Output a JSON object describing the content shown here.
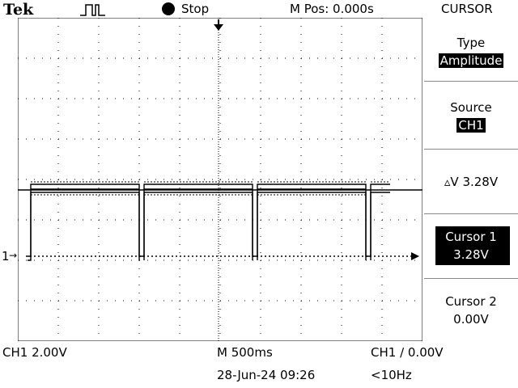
{
  "header": {
    "brand": "Tek",
    "trigger_icon": "pulse-trigger-icon",
    "run_state": "Stop",
    "m_pos": "M Pos: 0.000s",
    "menu_title": "CURSOR"
  },
  "menu": {
    "type_label": "Type",
    "type_value": "Amplitude",
    "source_label": "Source",
    "source_value": "CH1",
    "delta_v": "▵V 3.28V",
    "cursor1_label": "Cursor 1",
    "cursor1_value": "3.28V",
    "cursor2_label": "Cursor 2",
    "cursor2_value": "0.00V"
  },
  "footer": {
    "ch1_scale": "CH1  2.00V",
    "timebase": "M 500ms",
    "trigger": "CH1 ∕ 0.00V",
    "date_time": "28-Jun-24 09:26",
    "freq": "<10Hz"
  },
  "screen": {
    "channel_marker": "1",
    "marker_arrow": "→"
  },
  "colors": {
    "background": "#ffffff",
    "trace": "#000000"
  }
}
